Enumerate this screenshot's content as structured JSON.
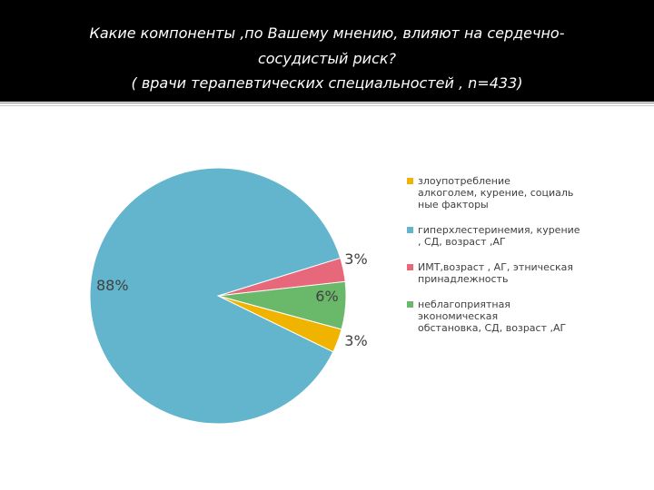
{
  "header": {
    "line1": "Какие компоненты ,по Вашему мнению, влияют   на сердечно-",
    "line2": "сосудистый риск?",
    "line3": "( врачи терапевтических специальностей , n=433)"
  },
  "chart_data": {
    "type": "pie",
    "slices": [
      {
        "label": "злоупотребление алкоголем, курение, социальные факторы",
        "legend_text": "злоупотребление\nалкоголем, курение, социаль\nные факторы",
        "value": 3,
        "data_label": "3%",
        "color": "#f0b400"
      },
      {
        "label": "гиперхлестеринемия, курение, СД, возраст ,АГ",
        "legend_text": "гиперхлестеринемия, курение\n, СД, возраст ,АГ",
        "value": 88,
        "data_label": "88%",
        "color": "#62b5cc"
      },
      {
        "label": "ИМТ,возраст , АГ, этническая принадлежность",
        "legend_text": "ИМТ,возраст ,  АГ, этническая\nпринадлежность",
        "value": 3,
        "data_label": "3%",
        "color": "#e6687a"
      },
      {
        "label": "неблагоприятная экономическая обстановка, СД, возраст ,АГ",
        "legend_text": "неблагоприятная\nэкономическая\nобстановка, СД, возраст ,АГ",
        "value": 6,
        "data_label": "6%",
        "color": "#6ab86a"
      }
    ],
    "legend_position": "right"
  }
}
